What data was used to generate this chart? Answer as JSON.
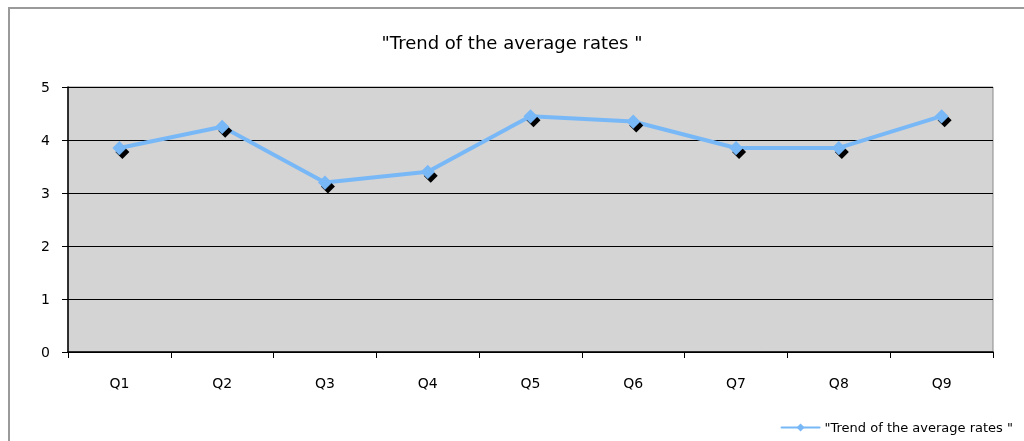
{
  "chart_data": {
    "type": "line",
    "title": "\"Trend of the average rates \"",
    "categories": [
      "Q1",
      "Q2",
      "Q3",
      "Q4",
      "Q5",
      "Q6",
      "Q7",
      "Q8",
      "Q9"
    ],
    "series": [
      {
        "name": "\"Trend of the average rates \"",
        "color": "#79b8f7",
        "values": [
          3.85,
          4.25,
          3.2,
          3.4,
          4.45,
          4.35,
          3.85,
          3.85,
          4.45
        ]
      }
    ],
    "ylim": [
      0,
      5
    ],
    "yticks": [
      0,
      1,
      2,
      3,
      4,
      5
    ],
    "grid": "y",
    "legend": "bottom right",
    "marker": "diamond",
    "line_style": "solid"
  }
}
